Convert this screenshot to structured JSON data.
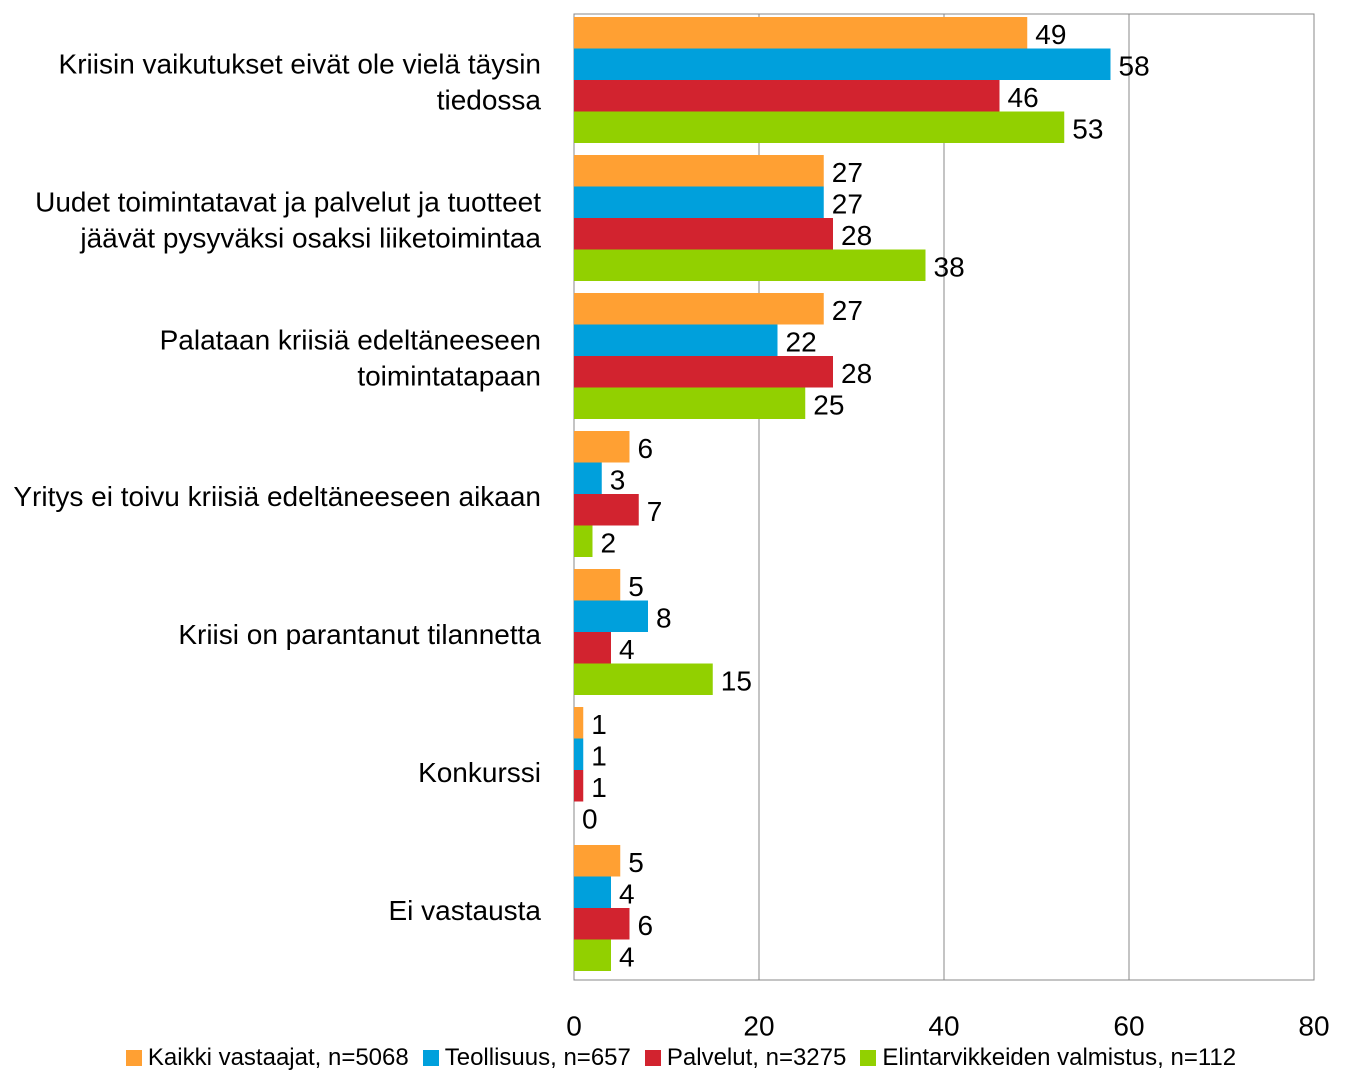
{
  "chart_data": {
    "type": "bar",
    "orientation": "horizontal",
    "categories": [
      "Kriisin vaikutukset eivät ole vielä täysin tiedossa",
      "Uudet toimintatavat ja palvelut ja tuotteet jäävät pysyväksi osaksi liiketoimintaa",
      "Palataan kriisiä edeltäneeseen toimintatapaan",
      "Yritys ei toivu kriisiä edeltäneeseen aikaan",
      "Kriisi on parantanut tilannetta",
      "Konkurssi",
      "Ei vastausta"
    ],
    "series": [
      {
        "name": "Kaikki vastaajat, n=5068",
        "color": "#ffa033",
        "values": [
          49,
          27,
          27,
          6,
          5,
          1,
          5
        ]
      },
      {
        "name": "Teollisuus, n=657",
        "color": "#00a0dc",
        "values": [
          58,
          27,
          22,
          3,
          8,
          1,
          4
        ]
      },
      {
        "name": "Palvelut, n=3275",
        "color": "#d2232f",
        "values": [
          46,
          28,
          28,
          7,
          4,
          1,
          6
        ]
      },
      {
        "name": "Elintarvikkeiden valmistus, n=112",
        "color": "#92d000",
        "values": [
          53,
          38,
          25,
          2,
          15,
          0,
          4
        ]
      }
    ],
    "xlim": [
      0,
      80
    ],
    "xticks": [
      0,
      20,
      40,
      60,
      80
    ],
    "grid": true,
    "legend": "bottom"
  }
}
